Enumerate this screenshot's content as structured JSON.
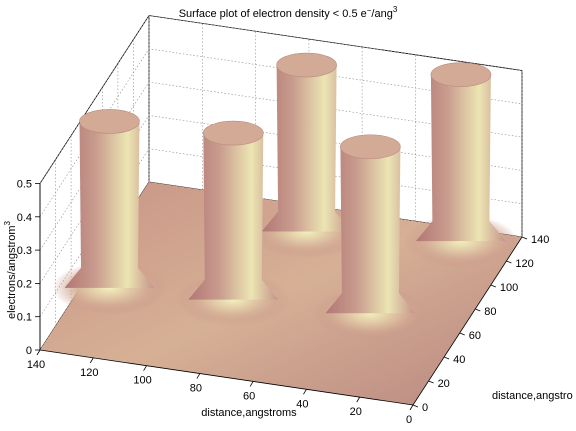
{
  "chart_data": {
    "type": "surface",
    "title_main": "Surface plot of electron density < 0.5 e",
    "title_sup1": "−",
    "title_mid": "/ang",
    "title_sup2": "3",
    "xlabel": "distance,angstroms",
    "ylabel": "distance,angstro",
    "zlabel_main": "electrons/angstrom",
    "zlabel_sup": "3",
    "x_ticks": [
      "0",
      "20",
      "40",
      "60",
      "80",
      "100",
      "120",
      "140"
    ],
    "y_ticks": [
      "0",
      "20",
      "40",
      "60",
      "80",
      "100",
      "120",
      "140"
    ],
    "z_ticks": [
      "0",
      "0.1",
      "0.2",
      "0.3",
      "0.4",
      "0.5"
    ],
    "xlim": [
      0,
      140
    ],
    "ylim": [
      0,
      140
    ],
    "zlim": [
      0,
      0.5
    ],
    "grid": true,
    "colormap": "pink",
    "colors": {
      "low": "#d9b89c",
      "mid": "#c08a86",
      "high": "#f2efb8",
      "cap": "#d2aa96",
      "floor": "#dcbc9e"
    },
    "peaks": [
      {
        "x": 75,
        "y": 120,
        "height": 0.5
      },
      {
        "x": 130,
        "y": 55,
        "height": 0.5
      },
      {
        "x": 85,
        "y": 60,
        "height": 0.5
      },
      {
        "x": 35,
        "y": 65,
        "height": 0.5
      },
      {
        "x": 20,
        "y": 130,
        "height": 0.5
      }
    ]
  }
}
